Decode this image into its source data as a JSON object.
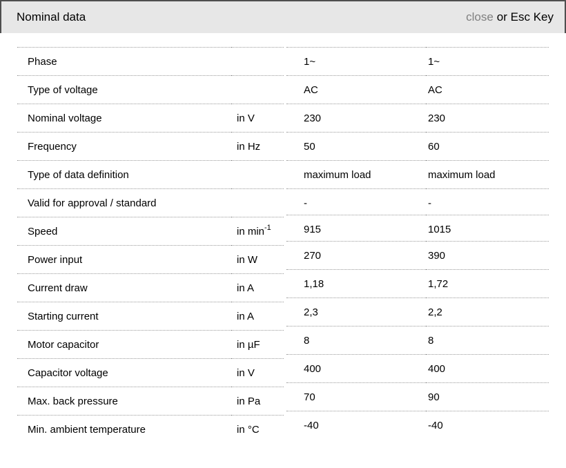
{
  "header": {
    "title": "Nominal data",
    "close_link": "close",
    "close_suffix": "or Esc Key"
  },
  "colors": {
    "header_bg": "#e7e7e7",
    "dialog_border": "#4f4f4f",
    "dotted_line": "#999999",
    "close_link_gray": "#808080",
    "text": "#000000"
  },
  "table": {
    "rows": [
      {
        "label": "Phase",
        "unit": "",
        "values": [
          "1~",
          "1~"
        ]
      },
      {
        "label": "Type of voltage",
        "unit": "",
        "values": [
          "AC",
          "AC"
        ]
      },
      {
        "label": "Nominal voltage",
        "unit": "in V",
        "values": [
          "230",
          "230"
        ]
      },
      {
        "label": "Frequency",
        "unit": "in Hz",
        "values": [
          "50",
          "60"
        ]
      },
      {
        "label": "Type of data definition",
        "unit": "",
        "values": [
          "maximum load",
          "maximum load"
        ]
      },
      {
        "label": "Valid for approval / standard",
        "unit": "",
        "values": [
          "-",
          "-"
        ]
      },
      {
        "label": "Speed",
        "unit": "in min",
        "unit_sup": "-1",
        "values": [
          "915",
          "1015"
        ]
      },
      {
        "label": "Power input",
        "unit": "in W",
        "values": [
          "270",
          "390"
        ]
      },
      {
        "label": "Current draw",
        "unit": "in A",
        "values": [
          "1,18",
          "1,72"
        ]
      },
      {
        "label": "Starting current",
        "unit": "in A",
        "values": [
          "2,3",
          "2,2"
        ]
      },
      {
        "label": "Motor capacitor",
        "unit": "in µF",
        "values": [
          "8",
          "8"
        ]
      },
      {
        "label": "Capacitor voltage",
        "unit": "in V",
        "values": [
          "400",
          "400"
        ]
      },
      {
        "label": "Max. back pressure",
        "unit": "in Pa",
        "values": [
          "70",
          "90"
        ]
      },
      {
        "label": "Min. ambient temperature",
        "unit": "in °C",
        "values": [
          "-40",
          "-40"
        ]
      }
    ]
  }
}
